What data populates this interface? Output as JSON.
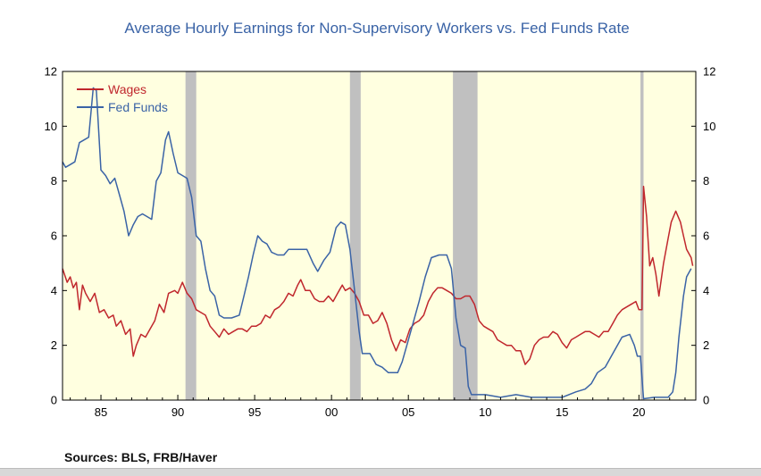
{
  "title": "Average Hourly Earnings for Non-Supervisory Workers vs. Fed Funds Rate",
  "sources": "Sources:  BLS, FRB/Haver",
  "colors": {
    "wages": "#c0272d",
    "fed_funds": "#3a63a6",
    "plot_bg": "#ffffe0",
    "recession": "#c0c0c0",
    "title": "#3a63a6"
  },
  "chart_data": {
    "type": "line",
    "title": "Average Hourly Earnings for Non-Supervisory Workers vs. Fed Funds Rate",
    "xlabel": "",
    "ylabel": "",
    "xlim": [
      1982.5,
      2023.7
    ],
    "ylim": [
      0,
      12
    ],
    "x_ticks": [
      1985,
      1990,
      1995,
      2000,
      2005,
      2010,
      2015,
      2020
    ],
    "x_tick_labels": [
      "85",
      "90",
      "95",
      "00",
      "05",
      "10",
      "15",
      "20"
    ],
    "y_ticks": [
      0,
      2,
      4,
      6,
      8,
      10,
      12
    ],
    "y_tick_labels": [
      "0",
      "2",
      "4",
      "6",
      "8",
      "10",
      "12"
    ],
    "grid": false,
    "legend": "top-left",
    "recessions": [
      [
        1990.5,
        1991.2
      ],
      [
        2001.2,
        2001.9
      ],
      [
        2007.9,
        2009.5
      ],
      [
        2020.1,
        2020.3
      ]
    ],
    "series": [
      {
        "name": "Wages",
        "points": [
          [
            1982.5,
            4.8
          ],
          [
            1982.8,
            4.3
          ],
          [
            1983.0,
            4.5
          ],
          [
            1983.2,
            4.1
          ],
          [
            1983.4,
            4.3
          ],
          [
            1983.6,
            3.3
          ],
          [
            1983.8,
            4.2
          ],
          [
            1984.0,
            3.9
          ],
          [
            1984.3,
            3.6
          ],
          [
            1984.6,
            3.9
          ],
          [
            1984.9,
            3.2
          ],
          [
            1985.2,
            3.3
          ],
          [
            1985.5,
            3.0
          ],
          [
            1985.8,
            3.1
          ],
          [
            1986.0,
            2.7
          ],
          [
            1986.3,
            2.9
          ],
          [
            1986.6,
            2.4
          ],
          [
            1986.9,
            2.6
          ],
          [
            1987.1,
            1.6
          ],
          [
            1987.3,
            2.0
          ],
          [
            1987.6,
            2.4
          ],
          [
            1987.9,
            2.3
          ],
          [
            1988.2,
            2.6
          ],
          [
            1988.5,
            2.9
          ],
          [
            1988.8,
            3.5
          ],
          [
            1989.1,
            3.2
          ],
          [
            1989.4,
            3.9
          ],
          [
            1989.8,
            4.0
          ],
          [
            1990.0,
            3.9
          ],
          [
            1990.3,
            4.3
          ],
          [
            1990.6,
            3.9
          ],
          [
            1990.9,
            3.7
          ],
          [
            1991.2,
            3.3
          ],
          [
            1991.5,
            3.2
          ],
          [
            1991.8,
            3.1
          ],
          [
            1992.1,
            2.7
          ],
          [
            1992.4,
            2.5
          ],
          [
            1992.7,
            2.3
          ],
          [
            1993.0,
            2.6
          ],
          [
            1993.3,
            2.4
          ],
          [
            1993.6,
            2.5
          ],
          [
            1993.9,
            2.6
          ],
          [
            1994.2,
            2.6
          ],
          [
            1994.5,
            2.5
          ],
          [
            1994.8,
            2.7
          ],
          [
            1995.1,
            2.7
          ],
          [
            1995.4,
            2.8
          ],
          [
            1995.7,
            3.1
          ],
          [
            1996.0,
            3.0
          ],
          [
            1996.3,
            3.3
          ],
          [
            1996.6,
            3.4
          ],
          [
            1996.9,
            3.6
          ],
          [
            1997.2,
            3.9
          ],
          [
            1997.5,
            3.8
          ],
          [
            1997.8,
            4.2
          ],
          [
            1998.0,
            4.4
          ],
          [
            1998.3,
            4.0
          ],
          [
            1998.6,
            4.0
          ],
          [
            1998.9,
            3.7
          ],
          [
            1999.2,
            3.6
          ],
          [
            1999.5,
            3.6
          ],
          [
            1999.8,
            3.8
          ],
          [
            2000.1,
            3.6
          ],
          [
            2000.4,
            3.9
          ],
          [
            2000.7,
            4.2
          ],
          [
            2000.9,
            4.0
          ],
          [
            2001.2,
            4.1
          ],
          [
            2001.5,
            3.9
          ],
          [
            2001.8,
            3.6
          ],
          [
            2002.1,
            3.1
          ],
          [
            2002.4,
            3.1
          ],
          [
            2002.7,
            2.8
          ],
          [
            2003.0,
            2.9
          ],
          [
            2003.3,
            3.2
          ],
          [
            2003.6,
            2.8
          ],
          [
            2003.9,
            2.2
          ],
          [
            2004.2,
            1.8
          ],
          [
            2004.5,
            2.2
          ],
          [
            2004.8,
            2.1
          ],
          [
            2005.1,
            2.6
          ],
          [
            2005.4,
            2.8
          ],
          [
            2005.7,
            2.9
          ],
          [
            2006.0,
            3.1
          ],
          [
            2006.3,
            3.6
          ],
          [
            2006.6,
            3.9
          ],
          [
            2006.9,
            4.1
          ],
          [
            2007.2,
            4.1
          ],
          [
            2007.5,
            4.0
          ],
          [
            2007.8,
            3.9
          ],
          [
            2008.1,
            3.7
          ],
          [
            2008.4,
            3.7
          ],
          [
            2008.7,
            3.8
          ],
          [
            2009.0,
            3.8
          ],
          [
            2009.3,
            3.5
          ],
          [
            2009.6,
            2.9
          ],
          [
            2009.9,
            2.7
          ],
          [
            2010.2,
            2.6
          ],
          [
            2010.5,
            2.5
          ],
          [
            2010.8,
            2.2
          ],
          [
            2011.1,
            2.1
          ],
          [
            2011.4,
            2.0
          ],
          [
            2011.7,
            2.0
          ],
          [
            2012.0,
            1.8
          ],
          [
            2012.3,
            1.8
          ],
          [
            2012.6,
            1.3
          ],
          [
            2012.9,
            1.5
          ],
          [
            2013.2,
            2.0
          ],
          [
            2013.5,
            2.2
          ],
          [
            2013.8,
            2.3
          ],
          [
            2014.1,
            2.3
          ],
          [
            2014.4,
            2.5
          ],
          [
            2014.7,
            2.4
          ],
          [
            2015.0,
            2.1
          ],
          [
            2015.3,
            1.9
          ],
          [
            2015.6,
            2.2
          ],
          [
            2015.9,
            2.3
          ],
          [
            2016.2,
            2.4
          ],
          [
            2016.5,
            2.5
          ],
          [
            2016.8,
            2.5
          ],
          [
            2017.1,
            2.4
          ],
          [
            2017.4,
            2.3
          ],
          [
            2017.7,
            2.5
          ],
          [
            2018.0,
            2.5
          ],
          [
            2018.3,
            2.8
          ],
          [
            2018.6,
            3.1
          ],
          [
            2018.9,
            3.3
          ],
          [
            2019.2,
            3.4
          ],
          [
            2019.5,
            3.5
          ],
          [
            2019.8,
            3.6
          ],
          [
            2020.0,
            3.3
          ],
          [
            2020.2,
            3.3
          ],
          [
            2020.3,
            7.8
          ],
          [
            2020.5,
            6.7
          ],
          [
            2020.7,
            4.9
          ],
          [
            2020.9,
            5.2
          ],
          [
            2021.1,
            4.6
          ],
          [
            2021.3,
            3.8
          ],
          [
            2021.6,
            5.0
          ],
          [
            2021.9,
            5.9
          ],
          [
            2022.1,
            6.5
          ],
          [
            2022.4,
            6.9
          ],
          [
            2022.7,
            6.5
          ],
          [
            2022.9,
            6.0
          ],
          [
            2023.1,
            5.5
          ],
          [
            2023.4,
            5.2
          ],
          [
            2023.5,
            4.9
          ]
        ]
      },
      {
        "name": "Fed Funds",
        "points": [
          [
            1982.5,
            8.7
          ],
          [
            1982.7,
            8.5
          ],
          [
            1983.0,
            8.6
          ],
          [
            1983.3,
            8.7
          ],
          [
            1983.6,
            9.4
          ],
          [
            1983.9,
            9.5
          ],
          [
            1984.2,
            9.6
          ],
          [
            1984.5,
            11.4
          ],
          [
            1984.7,
            11.3
          ],
          [
            1985.0,
            8.4
          ],
          [
            1985.3,
            8.2
          ],
          [
            1985.6,
            7.9
          ],
          [
            1985.9,
            8.1
          ],
          [
            1986.2,
            7.5
          ],
          [
            1986.5,
            6.9
          ],
          [
            1986.8,
            6.0
          ],
          [
            1987.1,
            6.4
          ],
          [
            1987.4,
            6.7
          ],
          [
            1987.7,
            6.8
          ],
          [
            1988.0,
            6.7
          ],
          [
            1988.3,
            6.6
          ],
          [
            1988.6,
            8.0
          ],
          [
            1988.9,
            8.3
          ],
          [
            1989.2,
            9.5
          ],
          [
            1989.4,
            9.8
          ],
          [
            1989.7,
            9.0
          ],
          [
            1990.0,
            8.3
          ],
          [
            1990.3,
            8.2
          ],
          [
            1990.6,
            8.1
          ],
          [
            1990.9,
            7.4
          ],
          [
            1991.2,
            6.0
          ],
          [
            1991.5,
            5.8
          ],
          [
            1991.8,
            4.8
          ],
          [
            1992.1,
            4.0
          ],
          [
            1992.4,
            3.8
          ],
          [
            1992.7,
            3.1
          ],
          [
            1993.0,
            3.0
          ],
          [
            1993.5,
            3.0
          ],
          [
            1994.0,
            3.1
          ],
          [
            1994.3,
            3.8
          ],
          [
            1994.6,
            4.5
          ],
          [
            1994.9,
            5.3
          ],
          [
            1995.2,
            6.0
          ],
          [
            1995.5,
            5.8
          ],
          [
            1995.8,
            5.7
          ],
          [
            1996.1,
            5.4
          ],
          [
            1996.5,
            5.3
          ],
          [
            1996.9,
            5.3
          ],
          [
            1997.2,
            5.5
          ],
          [
            1997.6,
            5.5
          ],
          [
            1998.0,
            5.5
          ],
          [
            1998.4,
            5.5
          ],
          [
            1998.8,
            5.0
          ],
          [
            1999.1,
            4.7
          ],
          [
            1999.5,
            5.1
          ],
          [
            1999.9,
            5.4
          ],
          [
            2000.3,
            6.3
          ],
          [
            2000.6,
            6.5
          ],
          [
            2000.9,
            6.4
          ],
          [
            2001.2,
            5.5
          ],
          [
            2001.5,
            4.0
          ],
          [
            2001.8,
            2.5
          ],
          [
            2002.0,
            1.7
          ],
          [
            2002.5,
            1.7
          ],
          [
            2002.9,
            1.3
          ],
          [
            2003.3,
            1.2
          ],
          [
            2003.7,
            1.0
          ],
          [
            2004.3,
            1.0
          ],
          [
            2004.6,
            1.4
          ],
          [
            2004.9,
            2.0
          ],
          [
            2005.3,
            2.8
          ],
          [
            2005.7,
            3.6
          ],
          [
            2006.1,
            4.5
          ],
          [
            2006.5,
            5.2
          ],
          [
            2007.0,
            5.3
          ],
          [
            2007.5,
            5.3
          ],
          [
            2007.8,
            4.8
          ],
          [
            2008.1,
            3.0
          ],
          [
            2008.4,
            2.0
          ],
          [
            2008.7,
            1.9
          ],
          [
            2008.9,
            0.5
          ],
          [
            2009.1,
            0.2
          ],
          [
            2010.0,
            0.2
          ],
          [
            2011.0,
            0.1
          ],
          [
            2012.0,
            0.2
          ],
          [
            2013.0,
            0.1
          ],
          [
            2014.0,
            0.1
          ],
          [
            2015.0,
            0.1
          ],
          [
            2015.9,
            0.3
          ],
          [
            2016.5,
            0.4
          ],
          [
            2016.9,
            0.6
          ],
          [
            2017.3,
            1.0
          ],
          [
            2017.8,
            1.2
          ],
          [
            2018.2,
            1.6
          ],
          [
            2018.6,
            2.0
          ],
          [
            2018.9,
            2.3
          ],
          [
            2019.4,
            2.4
          ],
          [
            2019.7,
            2.0
          ],
          [
            2019.9,
            1.6
          ],
          [
            2020.1,
            1.6
          ],
          [
            2020.3,
            0.05
          ],
          [
            2021.0,
            0.1
          ],
          [
            2021.9,
            0.1
          ],
          [
            2022.2,
            0.3
          ],
          [
            2022.4,
            1.0
          ],
          [
            2022.6,
            2.3
          ],
          [
            2022.9,
            3.8
          ],
          [
            2023.1,
            4.5
          ],
          [
            2023.4,
            4.8
          ]
        ]
      }
    ]
  }
}
